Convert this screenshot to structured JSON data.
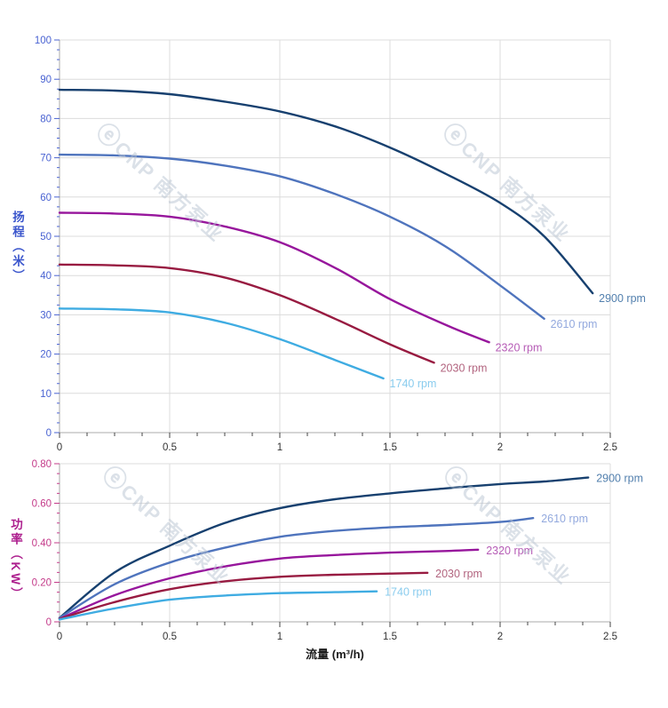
{
  "watermark": {
    "icon": "cnp-logo-icon",
    "glyph": "ⓔ",
    "text": "CNP 南方泵业",
    "color": "#b9c4d2",
    "opacity": 0.5
  },
  "chart_data": [
    {
      "type": "line",
      "name": "head-flow-chart",
      "title": "",
      "ylabel": "扬程（米）",
      "xlabel": "",
      "xlim": [
        0,
        2.5
      ],
      "ylim": [
        0,
        100
      ],
      "grid": true,
      "legend_position": "curve-end-labels",
      "x_tick_values": [
        0,
        0.5,
        1,
        1.5,
        2,
        2.5
      ],
      "x_tick_labels": [
        "0",
        "0.5",
        "1",
        "1.5",
        "2",
        "2.5"
      ],
      "x_minor_step": 0.125,
      "y_tick_values": [
        0,
        10,
        20,
        30,
        40,
        50,
        60,
        70,
        80,
        90,
        100
      ],
      "y_tick_labels": [
        "0",
        "10",
        "20",
        "30",
        "40",
        "50",
        "60",
        "70",
        "80",
        "90",
        "100"
      ],
      "y_minor_step": 2.5,
      "axis_text_color": "#4a63d2",
      "x_axis_text_color": "#333333",
      "series": [
        {
          "name": "2900 rpm",
          "color": "#17406f",
          "label_color": "#5380ae",
          "x": [
            0,
            0.25,
            0.5,
            0.75,
            1,
            1.25,
            1.5,
            1.75,
            2,
            2.2,
            2.42
          ],
          "y": [
            87.3,
            87.1,
            86.2,
            84.3,
            81.8,
            78,
            72.6,
            66,
            58.5,
            50,
            35.5
          ]
        },
        {
          "name": "2610 rpm",
          "color": "#4f74bd",
          "label_color": "#93a9de",
          "x": [
            0,
            0.25,
            0.5,
            0.75,
            1,
            1.25,
            1.5,
            1.75,
            2,
            2.2
          ],
          "y": [
            70.8,
            70.6,
            69.8,
            68,
            65.3,
            60.8,
            55,
            47.5,
            37.5,
            29
          ]
        },
        {
          "name": "2320 rpm",
          "color": "#97169c",
          "label_color": "#b65cb6",
          "x": [
            0,
            0.25,
            0.5,
            0.75,
            1,
            1.25,
            1.5,
            1.75,
            1.95
          ],
          "y": [
            56,
            55.8,
            55,
            52.5,
            48.5,
            42,
            34,
            27.5,
            23
          ]
        },
        {
          "name": "2030 rpm",
          "color": "#981b41",
          "label_color": "#b2647f",
          "x": [
            0,
            0.25,
            0.5,
            0.75,
            1,
            1.25,
            1.5,
            1.7
          ],
          "y": [
            42.8,
            42.6,
            41.9,
            39.5,
            35,
            29,
            22.5,
            17.8
          ]
        },
        {
          "name": "1740 rpm",
          "color": "#3face2",
          "label_color": "#8accee",
          "x": [
            0,
            0.25,
            0.5,
            0.75,
            1,
            1.25,
            1.47
          ],
          "y": [
            31.6,
            31.4,
            30.6,
            28,
            23.8,
            18.5,
            13.8
          ]
        }
      ]
    },
    {
      "type": "line",
      "name": "power-flow-chart",
      "title": "",
      "ylabel": "功率（KW）",
      "xlabel": "流量 (m³/h)",
      "xlim": [
        0,
        2.5
      ],
      "ylim": [
        0,
        0.8
      ],
      "grid": true,
      "legend_position": "curve-end-labels",
      "x_tick_values": [
        0,
        0.5,
        1,
        1.5,
        2,
        2.5
      ],
      "x_tick_labels": [
        "0",
        "0.5",
        "1",
        "1.5",
        "2",
        "2.5"
      ],
      "x_minor_step": 0.125,
      "y_tick_values": [
        0,
        0.2,
        0.4,
        0.6,
        0.8
      ],
      "y_tick_labels": [
        "0",
        "0.20",
        "0.40",
        "0.60",
        "0.80"
      ],
      "y_minor_step": 0.05,
      "axis_text_color": "#c43b8a",
      "x_axis_text_color": "#333333",
      "series": [
        {
          "name": "2900 rpm",
          "color": "#17406f",
          "label_color": "#5380ae",
          "x": [
            0,
            0.25,
            0.5,
            0.75,
            1,
            1.25,
            1.5,
            1.75,
            2,
            2.2,
            2.4
          ],
          "y": [
            0.02,
            0.25,
            0.385,
            0.5,
            0.575,
            0.62,
            0.65,
            0.675,
            0.697,
            0.71,
            0.73
          ]
        },
        {
          "name": "2610 rpm",
          "color": "#4f74bd",
          "label_color": "#93a9de",
          "x": [
            0,
            0.25,
            0.5,
            0.75,
            1,
            1.25,
            1.5,
            1.75,
            2,
            2.15
          ],
          "y": [
            0.02,
            0.19,
            0.3,
            0.375,
            0.43,
            0.46,
            0.478,
            0.49,
            0.505,
            0.525
          ]
        },
        {
          "name": "2320 rpm",
          "color": "#97169c",
          "label_color": "#b65cb6",
          "x": [
            0,
            0.25,
            0.5,
            0.75,
            1,
            1.25,
            1.5,
            1.75,
            1.9
          ],
          "y": [
            0.015,
            0.135,
            0.22,
            0.28,
            0.32,
            0.338,
            0.35,
            0.358,
            0.365
          ]
        },
        {
          "name": "2030 rpm",
          "color": "#981b41",
          "label_color": "#b2647f",
          "x": [
            0,
            0.25,
            0.5,
            0.75,
            1,
            1.25,
            1.5,
            1.67
          ],
          "y": [
            0.015,
            0.1,
            0.165,
            0.205,
            0.228,
            0.238,
            0.244,
            0.248
          ]
        },
        {
          "name": "1740 rpm",
          "color": "#3face2",
          "label_color": "#8accee",
          "x": [
            0,
            0.25,
            0.5,
            0.75,
            1,
            1.25,
            1.44
          ],
          "y": [
            0.012,
            0.068,
            0.112,
            0.133,
            0.145,
            0.15,
            0.154
          ]
        }
      ]
    }
  ]
}
